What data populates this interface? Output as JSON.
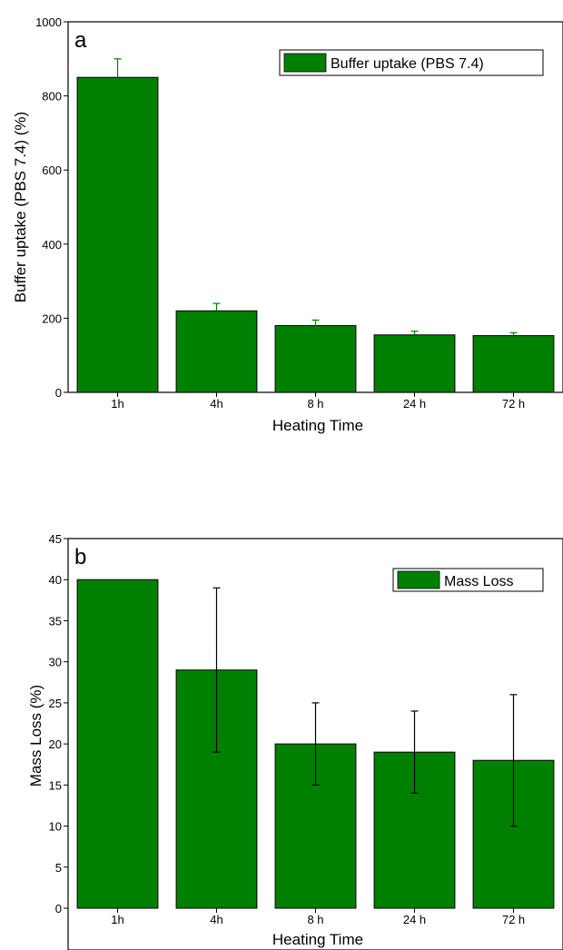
{
  "chart_data": [
    {
      "type": "bar",
      "panel_label": "a",
      "categories": [
        "1h",
        "4h",
        "8 h",
        "24 h",
        "72  h"
      ],
      "series": [
        {
          "name": "Buffer uptake (PBS 7.4)",
          "values": [
            850,
            220,
            180,
            155,
            153
          ],
          "errors": [
            50,
            20,
            15,
            10,
            8
          ],
          "error_direction": "up",
          "color": "#008000"
        }
      ],
      "xlabel": "Heating Time",
      "ylabel": "Buffer uptake (PBS 7.4) (%)",
      "ylim": [
        0,
        1000
      ],
      "yticks": [
        0,
        200,
        400,
        600,
        800,
        1000
      ],
      "grid": false,
      "legend_position": "top-right"
    },
    {
      "type": "bar",
      "panel_label": "b",
      "categories": [
        "1h",
        "4h",
        "8 h",
        "24 h",
        "72  h"
      ],
      "series": [
        {
          "name": "Mass Loss",
          "values": [
            40,
            29,
            20,
            19,
            18
          ],
          "errors": [
            0,
            10,
            5,
            5,
            8
          ],
          "error_direction": "both",
          "color": "#008000"
        }
      ],
      "xlabel": "Heating Time",
      "ylabel": "Mass Loss (%)",
      "ylim": [
        0,
        45
      ],
      "yticks": [
        0,
        5,
        10,
        15,
        20,
        25,
        30,
        35,
        40,
        45
      ],
      "grid": false,
      "legend_position": "top-right"
    }
  ]
}
